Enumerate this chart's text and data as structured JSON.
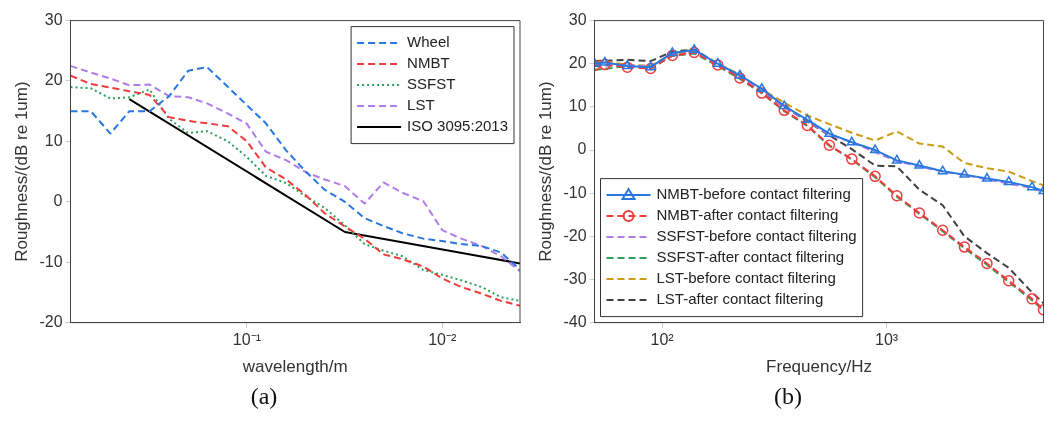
{
  "chart_data": [
    {
      "type": "line",
      "title": "(a)",
      "xlabel": "wavelength/m",
      "ylabel": "Roughness/(dB re 1um)",
      "log": "x",
      "grid": false,
      "legend": "top right",
      "x": [
        0.8,
        0.63,
        0.5,
        0.4,
        0.315,
        0.25,
        0.2,
        0.16,
        0.125,
        0.1,
        0.08,
        0.063,
        0.05,
        0.04,
        0.0315,
        0.025,
        0.02,
        0.016,
        0.0125,
        0.01,
        0.008,
        0.0063,
        0.005,
        0.004
      ],
      "xlim": [
        0.8,
        0.004
      ],
      "xticks": [
        {
          "value": 0.1,
          "label": "10⁻¹"
        },
        {
          "value": 0.01,
          "label": "10⁻²"
        }
      ],
      "ylim": [
        -20,
        30
      ],
      "yticks": [
        -20,
        -10,
        0,
        10,
        20,
        30
      ],
      "series": [
        {
          "name": "Wheel",
          "color": "#2878e0",
          "line_style": "dashed",
          "values": [
            15,
            15,
            11.3,
            15,
            15,
            17.5,
            21.7,
            22.3,
            19,
            16,
            13,
            8.5,
            5,
            2,
            0,
            -2.7,
            -4,
            -5.2,
            -6.1,
            -6.5,
            -7,
            -7.3,
            -8.4,
            -11.2
          ]
        },
        {
          "name": "NMBT",
          "color": "#f03c3c",
          "line_style": "dashed",
          "values": [
            20.9,
            19.5,
            18.9,
            18.3,
            17.7,
            14,
            13.4,
            13,
            12.5,
            10,
            5.7,
            3.7,
            1.1,
            -1.9,
            -4.1,
            -6.1,
            -8.7,
            -9.5,
            -10.7,
            -12.7,
            -14.1,
            -15.2,
            -16.4,
            -17.2
          ]
        },
        {
          "name": "SSFST",
          "color": "#2ca05a",
          "line_style": "dotted",
          "values": [
            19,
            18.8,
            17.1,
            17.3,
            18.6,
            13.7,
            11.4,
            11.7,
            10,
            7.4,
            4.3,
            3.1,
            0.9,
            -1,
            -3.9,
            -7,
            -8.1,
            -9,
            -11.3,
            -12.1,
            -13,
            -14.1,
            -15.8,
            -16.4
          ]
        },
        {
          "name": "LST",
          "color": "#b07de8",
          "line_style": "dashed",
          "values": [
            22.5,
            21.4,
            20.4,
            19.3,
            19.4,
            17.5,
            17.3,
            16.3,
            14.6,
            12.9,
            8.3,
            6.9,
            4.9,
            3.7,
            2.6,
            -0.3,
            3.2,
            1.5,
            0.1,
            -4.7,
            -6.1,
            -7.3,
            -9,
            -11.5
          ]
        },
        {
          "name": "ISO 3095:2013",
          "color": "#000000",
          "line_style": "solid",
          "x": [
            0.4,
            0.0315,
            0.004
          ],
          "values": [
            17,
            -5,
            -10.2
          ]
        }
      ]
    },
    {
      "type": "line",
      "title": "(b)",
      "xlabel": "Frequency/Hz",
      "ylabel": "Roughness/(dB re 1um)",
      "log": "x",
      "grid": false,
      "legend": "bottom left",
      "x": [
        50,
        55.6,
        70,
        88.9,
        111,
        139,
        177,
        222,
        278,
        350,
        444,
        556,
        700,
        889,
        1111,
        1400,
        1778,
        2222,
        2800,
        3500,
        4444,
        5000
      ],
      "xlim": [
        50,
        5000
      ],
      "xticks": [
        {
          "value": 100,
          "label": "10²"
        },
        {
          "value": 1000,
          "label": "10³"
        }
      ],
      "ylim": [
        -40,
        30
      ],
      "yticks": [
        -40,
        -30,
        -20,
        -10,
        0,
        10,
        20,
        30
      ],
      "series": [
        {
          "name": "NMBT-before contact filtering",
          "color": "#2878e0",
          "line_style": "solid",
          "marker": "triangle",
          "values": [
            20,
            20.3,
            19.5,
            19.2,
            22.5,
            23.2,
            20,
            17.3,
            14.2,
            10.2,
            7,
            3.8,
            1.8,
            0,
            -2.4,
            -3.6,
            -4.9,
            -5.7,
            -6.6,
            -7.4,
            -8.6,
            -9.5
          ]
        },
        {
          "name": "NMBT-after contact filtering",
          "color": "#f03c3c",
          "line_style": "dashed",
          "marker": "circle",
          "values": [
            19.6,
            19.8,
            19.2,
            18.9,
            21.9,
            22.6,
            19.7,
            16.7,
            13.2,
            9.2,
            5.7,
            1.1,
            -2.1,
            -6.1,
            -10.6,
            -14.6,
            -18.6,
            -22.5,
            -26.3,
            -30.3,
            -34.5,
            -37
          ]
        },
        {
          "name": "SSFST-before contact filtering",
          "color": "#b07de8",
          "line_style": "dashed",
          "values": [
            19.4,
            19.5,
            19.8,
            19.3,
            22,
            22.6,
            19.8,
            17,
            13.8,
            10,
            6.8,
            3.5,
            1.8,
            -0.5,
            -2.6,
            -3.8,
            -5,
            -5.8,
            -6.8,
            -7.8,
            -8.8,
            -9.8
          ]
        },
        {
          "name": "SSFST-after contact filtering",
          "color": "#2ca05a",
          "line_style": "dashed",
          "values": [
            18.6,
            18.8,
            19.5,
            18.9,
            21.8,
            22.4,
            19.5,
            16.5,
            13.2,
            9,
            5.5,
            1,
            -2.2,
            -6.3,
            -10.8,
            -14.8,
            -18.8,
            -22.8,
            -26.6,
            -30.6,
            -34.8,
            -37.2
          ]
        },
        {
          "name": "LST-before contact filtering",
          "color": "#cc9c14",
          "line_style": "dashed",
          "values": [
            20.4,
            20.5,
            19.8,
            19.5,
            22.3,
            23,
            20,
            17.5,
            14,
            11,
            8,
            6,
            4,
            2.2,
            4.3,
            1.5,
            0.8,
            -3,
            -4.2,
            -5,
            -7.2,
            -8.2
          ]
        },
        {
          "name": "LST-after contact filtering",
          "color": "#404040",
          "line_style": "dashed",
          "values": [
            20.6,
            20.7,
            20.9,
            20.6,
            22.8,
            23.3,
            20,
            16.8,
            13.6,
            10,
            6.6,
            3.4,
            0.2,
            -3.6,
            -3.8,
            -9.2,
            -12.8,
            -20,
            -23.9,
            -27.3,
            -33,
            -35.5
          ]
        }
      ]
    }
  ]
}
